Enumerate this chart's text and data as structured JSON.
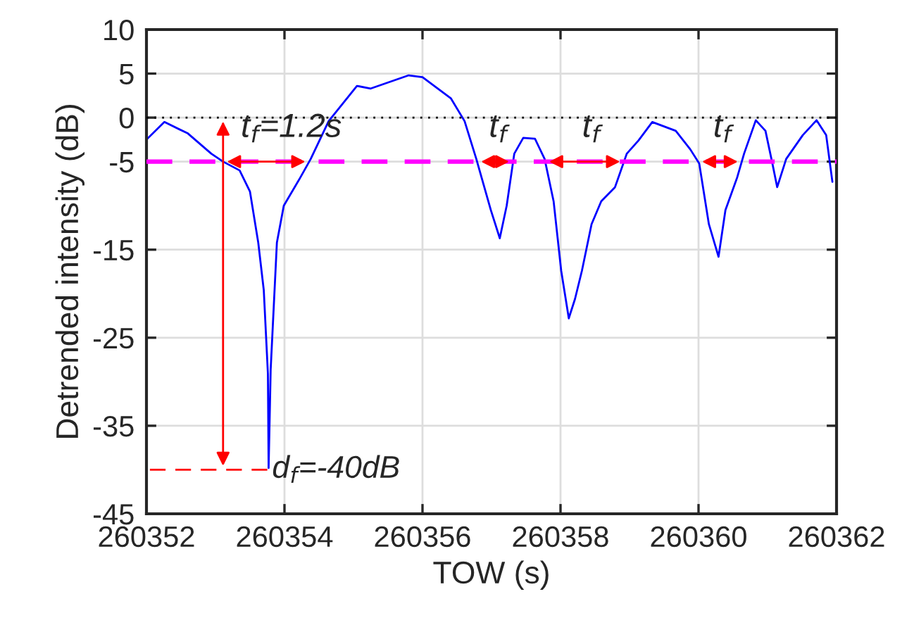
{
  "chart_data": {
    "type": "line",
    "xlabel": "TOW (s)",
    "ylabel": "Detrended intensity (dB)",
    "xlim": [
      260352,
      260362
    ],
    "xticks": [
      260352,
      260354,
      260356,
      260358,
      260360,
      260362
    ],
    "ylim": [
      -45,
      10
    ],
    "yticks": [
      10,
      5,
      0,
      -5,
      -15,
      -25,
      -35,
      -45
    ],
    "grid": true,
    "legend": false,
    "marker": "none",
    "line_style": "solid",
    "series": [
      {
        "color": "#0000ff",
        "x": [
          260352.0,
          260352.26,
          260352.6,
          260352.94,
          260353.11,
          260353.35,
          260353.5,
          260353.62,
          260353.7,
          260353.76,
          260353.77,
          260353.8,
          260353.89,
          260353.99,
          260354.23,
          260354.38,
          260354.64,
          260355.05,
          260355.25,
          260355.8,
          260356.0,
          260356.41,
          260356.61,
          260356.78,
          260356.99,
          260357.12,
          260357.22,
          260357.33,
          260357.46,
          260357.63,
          260357.77,
          260357.9,
          260358.01,
          260358.12,
          260358.21,
          260358.31,
          260358.45,
          260358.59,
          260358.79,
          260358.96,
          260359.13,
          260359.33,
          260359.67,
          260359.88,
          260360.01,
          260360.15,
          260360.29,
          260360.39,
          260360.56,
          260360.66,
          260360.83,
          260360.97,
          260361.07,
          260361.14,
          260361.27,
          260361.51,
          260361.71,
          260361.85,
          260361.94
        ],
        "values": [
          -2.5,
          -0.5,
          -1.8,
          -4.1,
          -5,
          -6,
          -8.4,
          -14.2,
          -19.6,
          -29.1,
          -39.8,
          -28.6,
          -14.2,
          -10,
          -6.8,
          -4.7,
          -0.4,
          3.6,
          3.3,
          4.8,
          4.6,
          2.2,
          -0.4,
          -4.7,
          -10.5,
          -13.7,
          -10,
          -4.1,
          -2.3,
          -2.4,
          -4.7,
          -9.5,
          -17.4,
          -22.8,
          -20.6,
          -17.4,
          -12.1,
          -9.5,
          -7.9,
          -4.1,
          -2.6,
          -0.5,
          -1.5,
          -3.6,
          -5.2,
          -12.1,
          -15.8,
          -10.5,
          -6.8,
          -4.1,
          -0.3,
          -1.5,
          -5.2,
          -7.9,
          -4.7,
          -2,
          -0.3,
          -2,
          -7.3
        ]
      }
    ],
    "ref_lines": [
      {
        "axis": "y",
        "value": 0,
        "color": "#000000",
        "line_style": "dotted"
      },
      {
        "axis": "y",
        "value": -5,
        "color": "#ff00ff",
        "line_style": "dashed"
      }
    ],
    "annotations": [
      {
        "text": "t$_{f}$=1.2s",
        "x": 260354.1,
        "y": -5
      },
      {
        "text": "t$_{f}$",
        "x": 260357.1,
        "y": -5
      },
      {
        "text": "t$_{f}$",
        "x": 260358.45,
        "y": -5
      },
      {
        "text": "t$_{f}$",
        "x": 260360.35,
        "y": -5
      },
      {
        "text": "d$_{f}$=-40dB",
        "x": 260353.77,
        "y": -40
      }
    ]
  }
}
